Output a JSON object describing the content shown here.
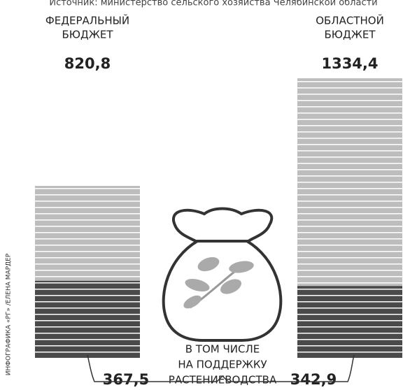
{
  "chart_data": {
    "type": "bar",
    "source": "Источник: министерство сельского хозяйства Челябинской области",
    "categories": [
      [
        "ФЕДЕРАЛЬНЫЙ",
        "БЮДЖЕТ"
      ],
      [
        "ОБЛАСТНОЙ",
        "БЮДЖЕТ"
      ]
    ],
    "series": [
      {
        "color": "#bdbdbd",
        "values": [
          820.8,
          1334.4
        ],
        "value_labels": [
          "820,8",
          "1334,4"
        ]
      },
      {
        "color": "#4a4a4a",
        "values": [
          367.5,
          342.9
        ],
        "value_labels": [
          "367,5",
          "342,9"
        ]
      }
    ],
    "annotation": [
      "В ТОМ ЧИСЛЕ",
      "НА ПОДДЕРЖКУ",
      "РАСТЕНИЕВОДСТВА"
    ],
    "credit": "ИНФОГРАФИКА «РГ» /ЕЛЕНА МАРДЕР"
  }
}
